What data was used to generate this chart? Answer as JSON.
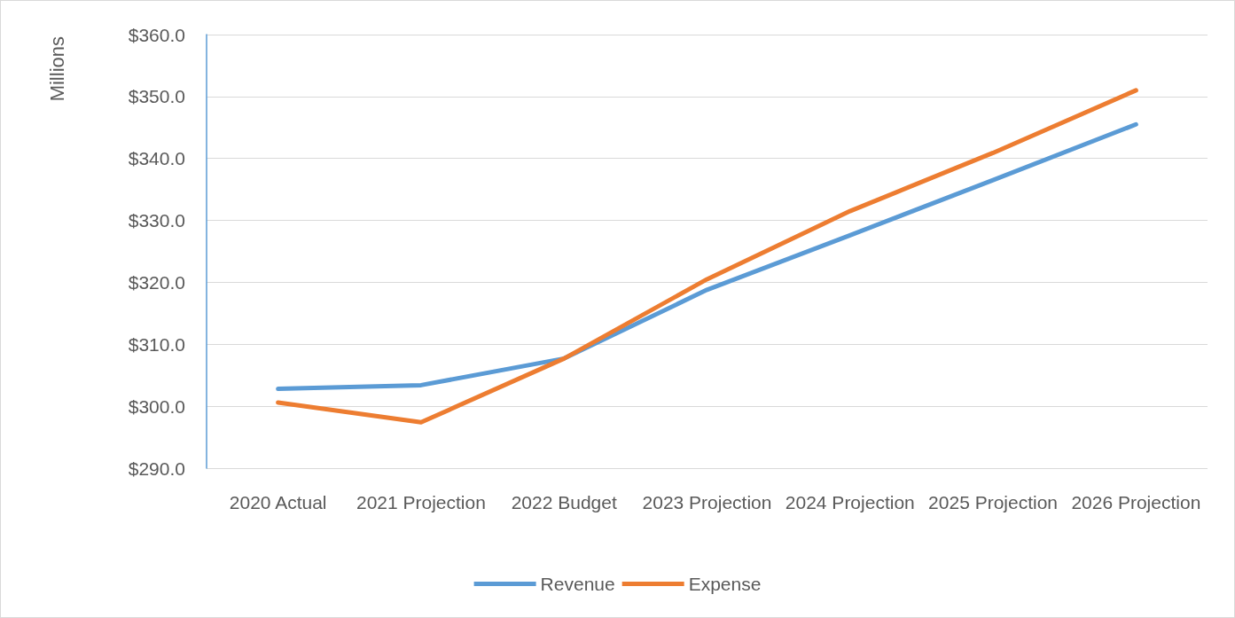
{
  "chart_data": {
    "type": "line",
    "ylabel": "Millions",
    "categories": [
      "2020 Actual",
      "2021 Projection",
      "2022 Budget",
      "2023 Projection",
      "2024 Projection",
      "2025 Projection",
      "2026 Projection"
    ],
    "series": [
      {
        "name": "Revenue",
        "color": "#5b9bd5",
        "values": [
          302.8,
          303.4,
          307.7,
          318.8,
          327.6,
          336.5,
          345.5
        ]
      },
      {
        "name": "Expense",
        "color": "#ed7d31",
        "values": [
          300.6,
          297.4,
          307.7,
          320.5,
          331.5,
          340.9,
          351.0
        ]
      }
    ],
    "ylim": [
      290,
      360
    ],
    "yticks": [
      {
        "value": 290,
        "label": "$290.0"
      },
      {
        "value": 300,
        "label": "$300.0"
      },
      {
        "value": 310,
        "label": "$310.0"
      },
      {
        "value": 320,
        "label": "$320.0"
      },
      {
        "value": 330,
        "label": "$330.0"
      },
      {
        "value": 340,
        "label": "$340.0"
      },
      {
        "value": 350,
        "label": "$350.0"
      },
      {
        "value": 360,
        "label": "$360.0"
      }
    ],
    "grid": "y",
    "legend": "bottom",
    "marker": "none",
    "line_style": "solid"
  }
}
